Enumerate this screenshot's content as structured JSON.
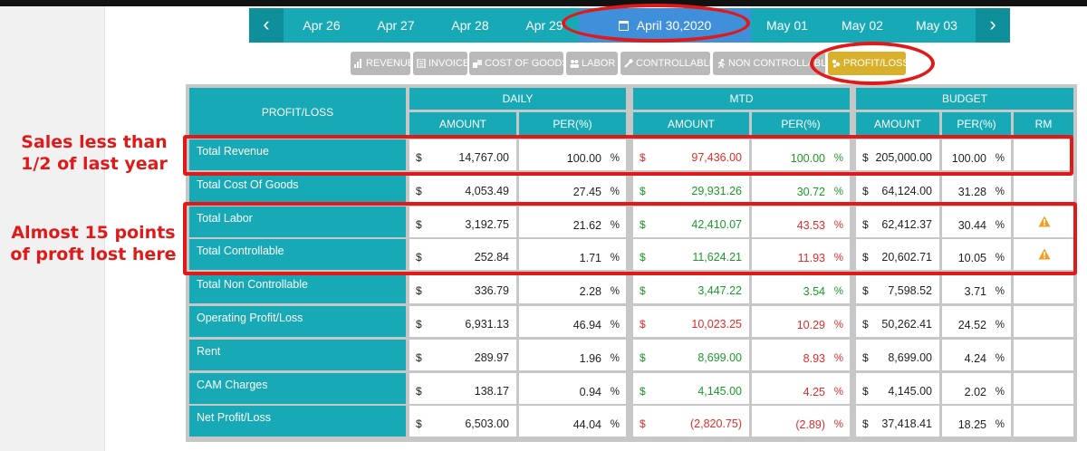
{
  "datebar": {
    "dates": [
      "Apr 26",
      "Apr 27",
      "Apr 28",
      "Apr 29",
      "April 30,2020",
      "May 01",
      "May 02",
      "May 03"
    ],
    "prev_icon": "‹",
    "next_icon": "›"
  },
  "tabs": [
    {
      "label": "REVENUE",
      "icon": "bar-chart-icon"
    },
    {
      "label": "INVOICE",
      "icon": "document-icon"
    },
    {
      "label": "COST OF GOODS",
      "icon": "boxes-icon"
    },
    {
      "label": "LABOR",
      "icon": "users-icon"
    },
    {
      "label": "CONTROLLABLE",
      "icon": "wrench-icon"
    },
    {
      "label": "NON CONTROLLABLE",
      "icon": "running-icon"
    },
    {
      "label": "PROFIT/LOSS",
      "icon": "coins-icon",
      "active": true
    }
  ],
  "table": {
    "corner_header": "PROFIT/LOSS",
    "groups": [
      "DAILY",
      "MTD",
      "BUDGET"
    ],
    "subheaders": [
      "AMOUNT",
      "PER(%)",
      "AMOUNT",
      "PER(%)",
      "AMOUNT",
      "PER(%)",
      "RM"
    ],
    "currency": "$",
    "pct_sign": "%",
    "rows": [
      {
        "label": "Total Revenue",
        "daily_amt": "14,767.00",
        "daily_per": "100.00",
        "mtd_amt": "97,436.00",
        "mtd_per": "100.00",
        "bud_amt": "205,000.00",
        "bud_per": "100.00",
        "warn": false
      },
      {
        "label": "Total Cost Of Goods",
        "daily_amt": "4,053.49",
        "daily_per": "27.45",
        "mtd_amt": "29,931.26",
        "mtd_per": "30.72",
        "bud_amt": "64,124.00",
        "bud_per": "31.28",
        "warn": false
      },
      {
        "label": "Total Labor",
        "daily_amt": "3,192.75",
        "daily_per": "21.62",
        "mtd_amt": "42,410.07",
        "mtd_per": "43.53",
        "bud_amt": "62,412.37",
        "bud_per": "30.44",
        "warn": true
      },
      {
        "label": "Total Controllable",
        "daily_amt": "252.84",
        "daily_per": "1.71",
        "mtd_amt": "11,624.21",
        "mtd_per": "11.93",
        "bud_amt": "20,602.71",
        "bud_per": "10.05",
        "warn": true
      },
      {
        "label": "Total Non Controllable",
        "daily_amt": "336.79",
        "daily_per": "2.28",
        "mtd_amt": "3,447.22",
        "mtd_per": "3.54",
        "bud_amt": "7,598.52",
        "bud_per": "3.71",
        "warn": false
      },
      {
        "label": "Operating Profit/Loss",
        "daily_amt": "6,931.13",
        "daily_per": "46.94",
        "mtd_amt": "10,023.25",
        "mtd_per": "10.29",
        "bud_amt": "50,262.41",
        "bud_per": "24.52",
        "warn": false
      },
      {
        "label": "Rent",
        "daily_amt": "289.97",
        "daily_per": "1.96",
        "mtd_amt": "8,699.00",
        "mtd_per": "8.93",
        "bud_amt": "8,699.00",
        "bud_per": "4.24",
        "warn": false
      },
      {
        "label": "CAM Charges",
        "daily_amt": "138.17",
        "daily_per": "0.94",
        "mtd_amt": "4,145.00",
        "mtd_per": "4.25",
        "bud_amt": "4,145.00",
        "bud_per": "2.02",
        "warn": false
      },
      {
        "label": "Net Profit/Loss",
        "daily_amt": "6,503.00",
        "daily_per": "44.04",
        "mtd_amt": "(2,820.75)",
        "mtd_per": "(2.89)",
        "bud_amt": "37,418.41",
        "bud_per": "18.25",
        "warn": false
      }
    ],
    "mtd_amt_colors": [
      "red",
      "green",
      "green",
      "green",
      "green",
      "red",
      "green",
      "green",
      "red"
    ],
    "mtd_per_colors": [
      "green",
      "green",
      "red",
      "red",
      "green",
      "red",
      "red",
      "red",
      "red"
    ]
  },
  "annotations": {
    "sales_note": "Sales less than 1/2 of last year",
    "profit_note": "Almost 15 points of proft lost here"
  },
  "colors": {
    "teal": "#17a9b6",
    "active_date": "#3f8fdb",
    "active_tab": "#d8b02c",
    "tab": "#b9b9b9",
    "annotation": "#e01919",
    "warning": "#f0a020"
  }
}
